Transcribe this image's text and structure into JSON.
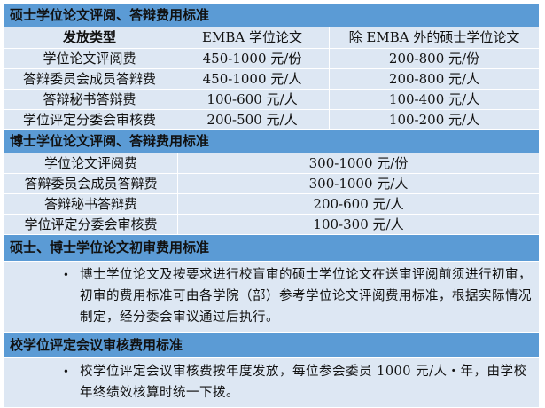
{
  "section1": {
    "title": "硕士学位论文评阅、答辩费用标准",
    "headers": [
      "发放类型",
      "EMBA 学位论文",
      "除 EMBA 外的硕士学位论文"
    ],
    "rows": [
      [
        "学位论文评阅费",
        "450-1000 元/份",
        "200-800 元/份"
      ],
      [
        "答辩委员会成员答辩费",
        "450-1000 元/人",
        "200-800 元/人"
      ],
      [
        "答辩秘书答辩费",
        "100-600 元/人",
        "100-400 元/人"
      ],
      [
        "学位评定分委会审核费",
        "200-500 元/人",
        "100-200 元/人"
      ]
    ]
  },
  "section2": {
    "title": "博士学位论文评阅、答辩费用标准",
    "rows": [
      [
        "学位论文评阅费",
        "300-1000 元/份"
      ],
      [
        "答辩委员会成员答辩费",
        "300-1000 元/人"
      ],
      [
        "答辩秘书答辩费",
        "200-600 元/人"
      ],
      [
        "学位评定分委会审核费",
        "100-300 元/人"
      ]
    ]
  },
  "section3": {
    "title": "硕士、博士学位论文初审费用标准",
    "bullet": "•",
    "text": "博士学位论文及按要求进行校盲审的硕士学位论文在送审评阅前须进行初审，初审的费用标准可由各学院（部）参考学位论文评阅费用标准，根据实际情况制定，经分委会审议通过后执行。"
  },
  "section4": {
    "title": "校学位评定会议审核费用标准",
    "bullet": "•",
    "text": "校学位评定会议审核费按年度发放，每位参会委员 1000 元/人・年，由学校年终绩效核算时统一下拨。"
  },
  "colors": {
    "header": "#5b9bd5",
    "cell": "#dde7f3"
  }
}
